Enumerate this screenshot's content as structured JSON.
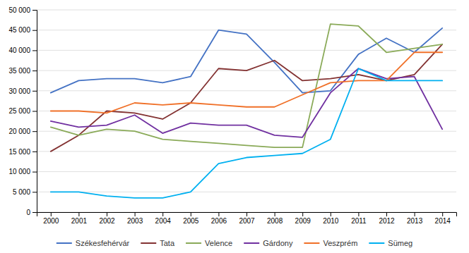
{
  "chart_data": {
    "type": "line",
    "x": [
      2000,
      2001,
      2002,
      2003,
      2004,
      2005,
      2006,
      2007,
      2008,
      2009,
      2010,
      2011,
      2012,
      2013,
      2014
    ],
    "series": [
      {
        "name": "Székesfehérvár",
        "color": "#4472C4",
        "values": [
          29500,
          32500,
          33000,
          33000,
          32000,
          33500,
          45000,
          44000,
          37000,
          29500,
          30000,
          39000,
          43000,
          39500,
          45500
        ]
      },
      {
        "name": "Tata",
        "color": "#833232",
        "values": [
          15000,
          19000,
          25000,
          24500,
          23000,
          27000,
          35500,
          35000,
          37500,
          32500,
          33000,
          34000,
          32500,
          34000,
          41500
        ]
      },
      {
        "name": "Velence",
        "color": "#8AAA58",
        "values": [
          21000,
          19000,
          20500,
          20000,
          18000,
          17500,
          17000,
          16500,
          16000,
          16000,
          46500,
          46000,
          39500,
          40500,
          41500
        ]
      },
      {
        "name": "Gárdony",
        "color": "#7030A0",
        "values": [
          22500,
          21000,
          21500,
          24000,
          19500,
          22000,
          21500,
          21500,
          19000,
          18500,
          29500,
          35500,
          33000,
          33500,
          20500
        ]
      },
      {
        "name": "Veszprém",
        "color": "#F07028",
        "values": [
          25000,
          25000,
          24500,
          27000,
          26500,
          27000,
          26500,
          26000,
          26000,
          29000,
          32000,
          32500,
          32500,
          39500,
          39500
        ]
      },
      {
        "name": "Sümeg",
        "color": "#00B0F0",
        "values": [
          5000,
          5000,
          4000,
          3500,
          3500,
          5000,
          12000,
          13500,
          14000,
          14500,
          18000,
          35500,
          32500,
          32500,
          32500
        ]
      }
    ],
    "xlim": [
      1999.5,
      2014.5
    ],
    "xticks": [
      2000,
      2001,
      2002,
      2003,
      2004,
      2005,
      2006,
      2007,
      2008,
      2009,
      2010,
      2011,
      2012,
      2013,
      2014
    ],
    "ylim": [
      0,
      50000
    ],
    "yticks": [
      0,
      {
        "value": 5000,
        "label": "5 000"
      },
      {
        "value": 10000,
        "label": "10 000"
      },
      {
        "value": 15000,
        "label": "15 000"
      },
      {
        "value": 20000,
        "label": "20 000"
      },
      {
        "value": 25000,
        "label": "25 000"
      },
      {
        "value": 30000,
        "label": "30 000"
      },
      {
        "value": 35000,
        "label": "35 000"
      },
      {
        "value": 40000,
        "label": "40 000"
      },
      {
        "value": 45000,
        "label": "45 000"
      },
      {
        "value": 50000,
        "label": "50 000"
      }
    ],
    "grid": true,
    "legend": "bottom"
  }
}
